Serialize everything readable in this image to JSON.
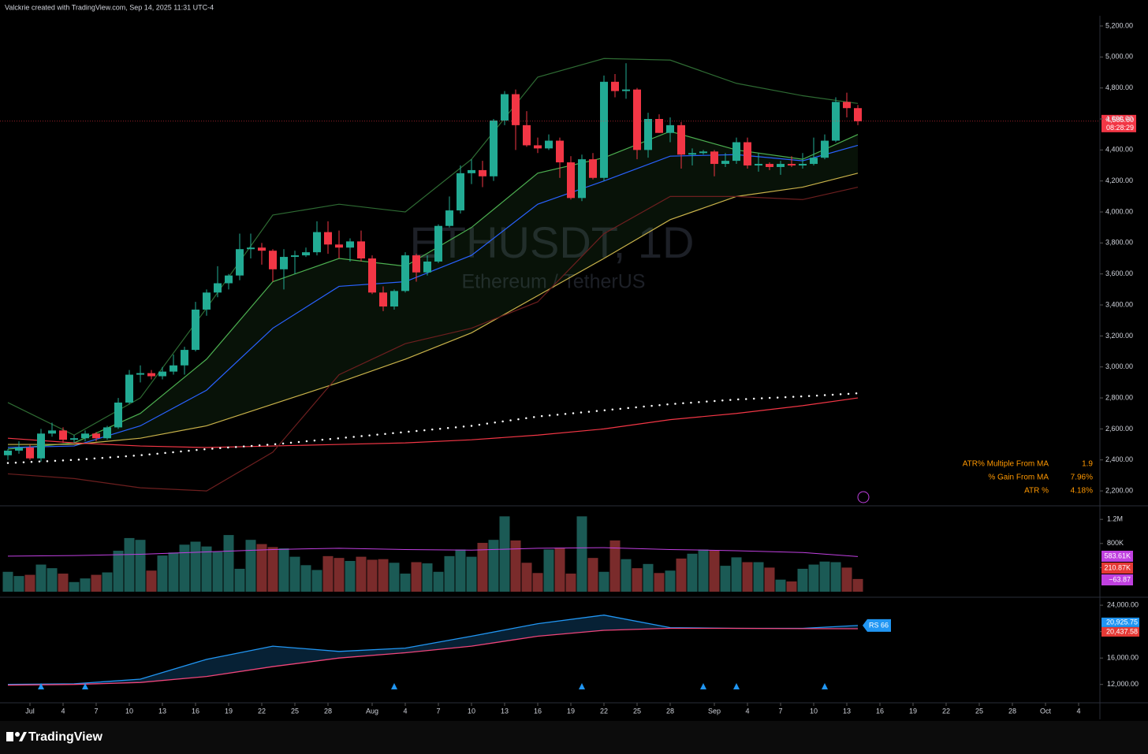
{
  "header": {
    "title": "Valckrie created with TradingView.com, Sep 14, 2025 11:31 UTC-4"
  },
  "watermark": {
    "symbol": "ETHUSDT, 1D",
    "name": "Ethereum / TetherUS"
  },
  "footer": {
    "brand": "TradingView"
  },
  "chart_data": {
    "type": "candlestick",
    "x": [
      "Jun 29",
      "Jun 30",
      "Jul 1",
      "Jul 2",
      "Jul 3",
      "Jul 4",
      "Jul 5",
      "Jul 6",
      "Jul 7",
      "Jul 8",
      "Jul 9",
      "Jul 10",
      "Jul 11",
      "Jul 12",
      "Jul 13",
      "Jul 14",
      "Jul 15",
      "Jul 16",
      "Jul 17",
      "Jul 18",
      "Jul 19",
      "Jul 20",
      "Jul 21",
      "Jul 22",
      "Jul 23",
      "Jul 24",
      "Jul 25",
      "Jul 26",
      "Jul 27",
      "Jul 28",
      "Jul 29",
      "Jul 30",
      "Jul 31",
      "Aug 1",
      "Aug 2",
      "Aug 3",
      "Aug 4",
      "Aug 5",
      "Aug 6",
      "Aug 7",
      "Aug 8",
      "Aug 9",
      "Aug 10",
      "Aug 11",
      "Aug 12",
      "Aug 13",
      "Aug 14",
      "Aug 15",
      "Aug 16",
      "Aug 17",
      "Aug 18",
      "Aug 19",
      "Aug 20",
      "Aug 21",
      "Aug 22",
      "Aug 23",
      "Aug 24",
      "Aug 25",
      "Aug 26",
      "Aug 27",
      "Aug 28",
      "Aug 29",
      "Aug 30",
      "Aug 31",
      "Sep 1",
      "Sep 2",
      "Sep 3",
      "Sep 4",
      "Sep 5",
      "Sep 6",
      "Sep 7",
      "Sep 8",
      "Sep 9",
      "Sep 10",
      "Sep 11",
      "Sep 12",
      "Sep 13",
      "Sep 14"
    ],
    "open": [
      2430,
      2460,
      2480,
      2410,
      2570,
      2590,
      2530,
      2540,
      2570,
      2540,
      2610,
      2770,
      2950,
      2960,
      2940,
      2970,
      3010,
      3110,
      3370,
      3480,
      3540,
      3590,
      3760,
      3770,
      3750,
      3630,
      3710,
      3720,
      3740,
      3870,
      3790,
      3770,
      3810,
      3700,
      3480,
      3390,
      3490,
      3720,
      3610,
      3680,
      3910,
      4010,
      4250,
      4270,
      4230,
      4590,
      4760,
      4560,
      4430,
      4410,
      4460,
      4320,
      4090,
      4340,
      4220,
      4840,
      4780,
      4790,
      4400,
      4600,
      4510,
      4560,
      4370,
      4380,
      4390,
      4310,
      4330,
      4450,
      4300,
      4310,
      4290,
      4310,
      4300,
      4310,
      4350,
      4460,
      4710,
      4670
    ],
    "high": [
      2470,
      2520,
      2500,
      2600,
      2640,
      2610,
      2560,
      2590,
      2580,
      2620,
      2800,
      2980,
      3010,
      2980,
      3000,
      3080,
      3130,
      3420,
      3500,
      3650,
      3600,
      3860,
      3860,
      3800,
      3760,
      3760,
      3750,
      3770,
      3940,
      3940,
      3880,
      3830,
      3880,
      3720,
      3520,
      3500,
      3740,
      3730,
      3720,
      3920,
      4100,
      4300,
      4340,
      4330,
      4600,
      4780,
      4790,
      4650,
      4480,
      4500,
      4480,
      4360,
      4370,
      4380,
      4880,
      4890,
      4960,
      4800,
      4640,
      4630,
      4610,
      4580,
      4410,
      4400,
      4400,
      4380,
      4480,
      4480,
      4380,
      4320,
      4330,
      4360,
      4380,
      4480,
      4500,
      4740,
      4770,
      4690
    ],
    "low": [
      2400,
      2440,
      2400,
      2390,
      2550,
      2510,
      2510,
      2520,
      2520,
      2530,
      2600,
      2760,
      2900,
      2920,
      2920,
      2950,
      2950,
      3100,
      3330,
      3450,
      3500,
      3560,
      3700,
      3660,
      3550,
      3500,
      3600,
      3710,
      3720,
      3730,
      3700,
      3680,
      3680,
      3470,
      3360,
      3370,
      3480,
      3550,
      3590,
      3670,
      3900,
      3990,
      4180,
      4160,
      4200,
      4560,
      4400,
      4420,
      4380,
      4400,
      4220,
      4080,
      4070,
      4210,
      4200,
      4740,
      4730,
      4340,
      4350,
      4510,
      4450,
      4280,
      4300,
      4370,
      4230,
      4290,
      4310,
      4280,
      4260,
      4270,
      4240,
      4290,
      4280,
      4300,
      4340,
      4450,
      4610,
      4560
    ],
    "close": [
      2460,
      2480,
      2410,
      2570,
      2590,
      2530,
      2540,
      2570,
      2540,
      2610,
      2770,
      2950,
      2960,
      2940,
      2970,
      3010,
      3110,
      3370,
      3480,
      3540,
      3590,
      3760,
      3770,
      3750,
      3630,
      3710,
      3720,
      3740,
      3870,
      3790,
      3770,
      3810,
      3700,
      3480,
      3390,
      3490,
      3720,
      3610,
      3680,
      3910,
      4010,
      4250,
      4270,
      4230,
      4590,
      4760,
      4560,
      4430,
      4410,
      4460,
      4320,
      4090,
      4340,
      4220,
      4840,
      4780,
      4790,
      4400,
      4600,
      4510,
      4560,
      4370,
      4380,
      4390,
      4310,
      4330,
      4450,
      4300,
      4310,
      4290,
      4310,
      4300,
      4310,
      4350,
      4460,
      4710,
      4670,
      4585.6
    ],
    "volume": [
      330000,
      260000,
      280000,
      450000,
      390000,
      300000,
      160000,
      220000,
      280000,
      320000,
      680000,
      890000,
      860000,
      350000,
      600000,
      650000,
      780000,
      830000,
      750000,
      660000,
      940000,
      380000,
      860000,
      790000,
      740000,
      720000,
      580000,
      440000,
      360000,
      590000,
      560000,
      510000,
      580000,
      530000,
      540000,
      480000,
      300000,
      490000,
      470000,
      330000,
      590000,
      700000,
      580000,
      810000,
      860000,
      1250000,
      850000,
      480000,
      310000,
      700000,
      730000,
      300000,
      1250000,
      560000,
      330000,
      850000,
      540000,
      390000,
      460000,
      310000,
      350000,
      550000,
      630000,
      700000,
      690000,
      430000,
      570000,
      490000,
      490000,
      400000,
      200000,
      170000,
      380000,
      450000,
      500000,
      490000,
      400000,
      210870
    ],
    "up_color": "#22ab94",
    "down_color": "#f23645",
    "volume_up_color": "#1b5a55",
    "volume_down_color": "#7a2b2b",
    "ylim": [
      2114,
      5266
    ],
    "yticks": [
      {
        "value": 2200,
        "label": "2,200.00"
      },
      {
        "value": 2400,
        "label": "2,400.00"
      },
      {
        "value": 2600,
        "label": "2,600.00"
      },
      {
        "value": 2800,
        "label": "2,800.00"
      },
      {
        "value": 3000,
        "label": "3,000.00"
      },
      {
        "value": 3200,
        "label": "3,200.00"
      },
      {
        "value": 3400,
        "label": "3,400.00"
      },
      {
        "value": 3600,
        "label": "3,600.00"
      },
      {
        "value": 3800,
        "label": "3,800.00"
      },
      {
        "value": 4000,
        "label": "4,000.00"
      },
      {
        "value": 4200,
        "label": "4,200.00"
      },
      {
        "value": 4400,
        "label": "4,400.00"
      },
      {
        "value": 4600,
        "label": "4,600.00"
      },
      {
        "value": 4800,
        "label": "4,800.00"
      },
      {
        "value": 5000,
        "label": "5,000.00"
      },
      {
        "value": 5200,
        "label": "5,200.00"
      }
    ],
    "xticks": [
      {
        "value": "Jul 1",
        "label": "Jul"
      },
      {
        "value": "Jul 4",
        "label": "4"
      },
      {
        "value": "Jul 7",
        "label": "7"
      },
      {
        "value": "Jul 10",
        "label": "10"
      },
      {
        "value": "Jul 13",
        "label": "13"
      },
      {
        "value": "Jul 16",
        "label": "16"
      },
      {
        "value": "Jul 19",
        "label": "19"
      },
      {
        "value": "Jul 22",
        "label": "22"
      },
      {
        "value": "Jul 25",
        "label": "25"
      },
      {
        "value": "Jul 28",
        "label": "28"
      },
      {
        "value": "Aug 1",
        "label": "Aug"
      },
      {
        "value": "Aug 4",
        "label": "4"
      },
      {
        "value": "Aug 7",
        "label": "7"
      },
      {
        "value": "Aug 10",
        "label": "10"
      },
      {
        "value": "Aug 13",
        "label": "13"
      },
      {
        "value": "Aug 16",
        "label": "16"
      },
      {
        "value": "Aug 19",
        "label": "19"
      },
      {
        "value": "Aug 22",
        "label": "22"
      },
      {
        "value": "Aug 25",
        "label": "25"
      },
      {
        "value": "Aug 28",
        "label": "28"
      },
      {
        "value": "Sep 1",
        "label": "Sep"
      },
      {
        "value": "Sep 4",
        "label": "4"
      },
      {
        "value": "Sep 7",
        "label": "7"
      },
      {
        "value": "Sep 10",
        "label": "10"
      },
      {
        "value": "Sep 13",
        "label": "13"
      },
      {
        "value": "Sep 16",
        "label": "16"
      },
      {
        "value": "Sep 19",
        "label": "19"
      },
      {
        "value": "Sep 22",
        "label": "22"
      },
      {
        "value": "Sep 25",
        "label": "25"
      },
      {
        "value": "Sep 28",
        "label": "28"
      },
      {
        "value": "Oct 1",
        "label": "Oct"
      },
      {
        "value": "Oct 4",
        "label": "4"
      }
    ],
    "price_label": "4,585.60",
    "countdown": "08:28:29",
    "lines": [
      {
        "color": "#4caf50",
        "x": [
          "Jun 29",
          "Jul 5",
          "Jul 11",
          "Jul 17",
          "Jul 23",
          "Jul 29",
          "Aug 4",
          "Aug 10",
          "Aug 16",
          "Aug 22",
          "Aug 28",
          "Sep 3",
          "Sep 9",
          "Sep 14"
        ],
        "values": [
          2470,
          2510,
          2700,
          3050,
          3550,
          3700,
          3650,
          3900,
          4250,
          4350,
          4520,
          4400,
          4340,
          4500
        ]
      },
      {
        "color": "#2962ff",
        "x": [
          "Jun 29",
          "Jul 5",
          "Jul 11",
          "Jul 17",
          "Jul 23",
          "Jul 29",
          "Aug 4",
          "Aug 10",
          "Aug 16",
          "Aug 22",
          "Aug 28",
          "Sep 3",
          "Sep 9",
          "Sep 14"
        ],
        "values": [
          2480,
          2490,
          2620,
          2850,
          3250,
          3520,
          3550,
          3720,
          4050,
          4200,
          4360,
          4370,
          4330,
          4430
        ]
      },
      {
        "color": "#c9b24a",
        "x": [
          "Jun 29",
          "Jul 5",
          "Jul 11",
          "Jul 17",
          "Jul 23",
          "Jul 29",
          "Aug 4",
          "Aug 10",
          "Aug 16",
          "Aug 22",
          "Aug 28",
          "Sep 3",
          "Sep 9",
          "Sep 14"
        ],
        "values": [
          2500,
          2500,
          2540,
          2620,
          2760,
          2900,
          3050,
          3220,
          3460,
          3700,
          3950,
          4100,
          4160,
          4250
        ]
      },
      {
        "color": "#f23645",
        "x": [
          "Jun 29",
          "Jul 5",
          "Jul 11",
          "Jul 17",
          "Jul 23",
          "Jul 29",
          "Aug 4",
          "Aug 10",
          "Aug 16",
          "Aug 22",
          "Aug 28",
          "Sep 3",
          "Sep 9",
          "Sep 14"
        ],
        "values": [
          2540,
          2510,
          2490,
          2480,
          2490,
          2500,
          2510,
          2530,
          2560,
          2600,
          2660,
          2700,
          2750,
          2800
        ]
      },
      {
        "color": "#ffffff",
        "style": "dots",
        "x": [
          "Jun 29",
          "Jul 5",
          "Jul 11",
          "Jul 17",
          "Jul 23",
          "Jul 29",
          "Aug 4",
          "Aug 10",
          "Aug 16",
          "Aug 22",
          "Aug 28",
          "Sep 3",
          "Sep 9",
          "Sep 14"
        ],
        "values": [
          2380,
          2400,
          2430,
          2470,
          2500,
          2540,
          2580,
          2620,
          2680,
          2720,
          2760,
          2790,
          2810,
          2830
        ]
      },
      {
        "color": "#2e6b33",
        "x": [
          "Jun 29",
          "Jul 5",
          "Jul 11",
          "Jul 17",
          "Jul 23",
          "Jul 29",
          "Aug 4",
          "Aug 10",
          "Aug 16",
          "Aug 22",
          "Aug 28",
          "Sep 3",
          "Sep 9",
          "Sep 14"
        ],
        "values": [
          2770,
          2560,
          2800,
          3380,
          3980,
          4050,
          4000,
          4340,
          4870,
          4990,
          4980,
          4830,
          4750,
          4700
        ]
      },
      {
        "color": "#6d1f1f",
        "x": [
          "Jun 29",
          "Jul 5",
          "Jul 11",
          "Jul 17",
          "Jul 23",
          "Jul 29",
          "Aug 4",
          "Aug 10",
          "Aug 16",
          "Aug 22",
          "Aug 28",
          "Sep 3",
          "Sep 9",
          "Sep 14"
        ],
        "values": [
          2310,
          2280,
          2220,
          2200,
          2450,
          2950,
          3150,
          3250,
          3420,
          3860,
          4100,
          4100,
          4080,
          4160
        ]
      }
    ],
    "stats": [
      {
        "label": "ATR% Multiple From MA",
        "value": "1.9"
      },
      {
        "label": "% Gain From MA",
        "value": "7.96%"
      },
      {
        "label": "ATR %",
        "value": "4.18%"
      }
    ],
    "volume_ylim": [
      0,
      1320000
    ],
    "volume_ticks": [
      {
        "value": 400000,
        "label": "400K"
      },
      {
        "value": 800000,
        "label": "800K"
      },
      {
        "value": 1200000,
        "label": "1.2M"
      }
    ],
    "volume_ma": {
      "color": "#c040e0",
      "x": [
        "Jun 29",
        "Jul 5",
        "Jul 11",
        "Jul 17",
        "Jul 23",
        "Jul 29",
        "Aug 4",
        "Aug 10",
        "Aug 16",
        "Aug 22",
        "Aug 28",
        "Sep 3",
        "Sep 9",
        "Sep 14"
      ],
      "values": [
        590000,
        600000,
        620000,
        660000,
        700000,
        720000,
        700000,
        690000,
        720000,
        730000,
        700000,
        680000,
        650000,
        583610
      ]
    },
    "volume_labels": [
      {
        "text": "583.61K",
        "color": "#c040e0"
      },
      {
        "text": "210.87K",
        "color": "#e53935"
      },
      {
        "text": "−63.87",
        "color": "#c040e0"
      }
    ],
    "rs_ylim": [
      9460,
      24970
    ],
    "rs_ticks": [
      {
        "value": 12000,
        "label": "12,000.00"
      },
      {
        "value": 16000,
        "label": "16,000.00"
      },
      {
        "value": 20000,
        "label": "20,000.00"
      },
      {
        "value": 24000,
        "label": "24,000.00"
      }
    ],
    "rs": {
      "color": "#2196f3",
      "x": [
        "Jun 29",
        "Jul 5",
        "Jul 11",
        "Jul 17",
        "Jul 23",
        "Jul 29",
        "Aug 4",
        "Aug 10",
        "Aug 16",
        "Aug 22",
        "Aug 28",
        "Sep 3",
        "Sep 9",
        "Sep 14"
      ],
      "values": [
        12000,
        12100,
        12800,
        15800,
        17800,
        17000,
        17500,
        19300,
        21200,
        22500,
        20600,
        20500,
        20500,
        20925.75
      ],
      "value_label": "20,925.75"
    },
    "rs_ma": {
      "color": "#f0457a",
      "x": [
        "Jun 29",
        "Jul 5",
        "Jul 11",
        "Jul 17",
        "Jul 23",
        "Jul 29",
        "Aug 4",
        "Aug 10",
        "Aug 16",
        "Aug 22",
        "Aug 28",
        "Sep 3",
        "Sep 9",
        "Sep 14"
      ],
      "values": [
        11900,
        12000,
        12300,
        13200,
        14700,
        16000,
        16800,
        17800,
        19300,
        20200,
        20500,
        20500,
        20450,
        20437.58
      ],
      "value_label": "20,437.58"
    },
    "rs_tag": "RS 66",
    "rs_signals": [
      "Jul 2",
      "Jul 6",
      "Aug 3",
      "Aug 20",
      "Aug 31",
      "Sep 3",
      "Sep 11"
    ]
  }
}
